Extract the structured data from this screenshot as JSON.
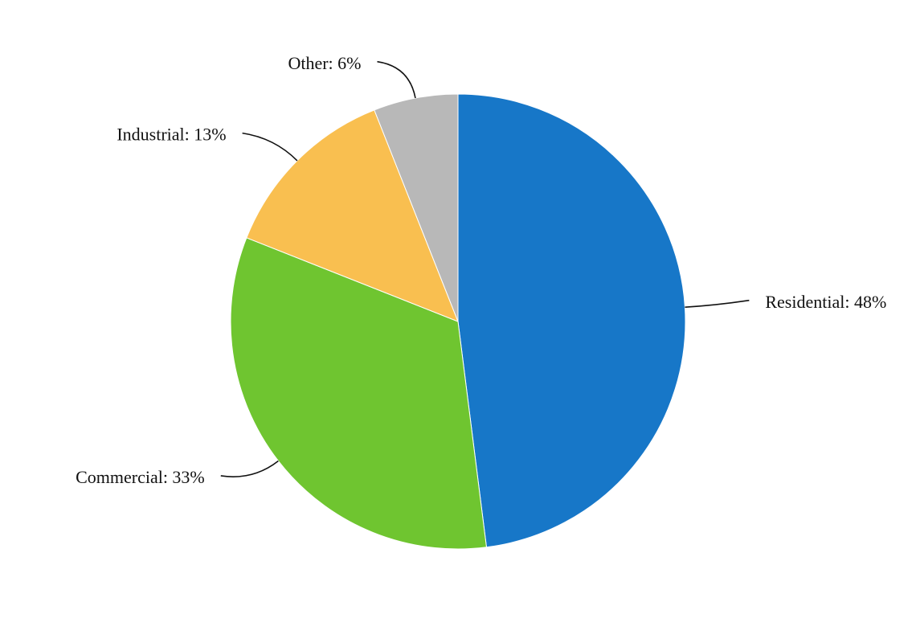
{
  "chart_data": {
    "type": "pie",
    "values": [
      48,
      33,
      13,
      6
    ],
    "value_labels": [
      "Residential: 48%",
      "Commercial: 33%",
      "Industrial: 13%",
      "Other: 6%"
    ],
    "colors": [
      "#1777c8",
      "#6fc530",
      "#f9bf50",
      "#b8b8b8"
    ]
  }
}
